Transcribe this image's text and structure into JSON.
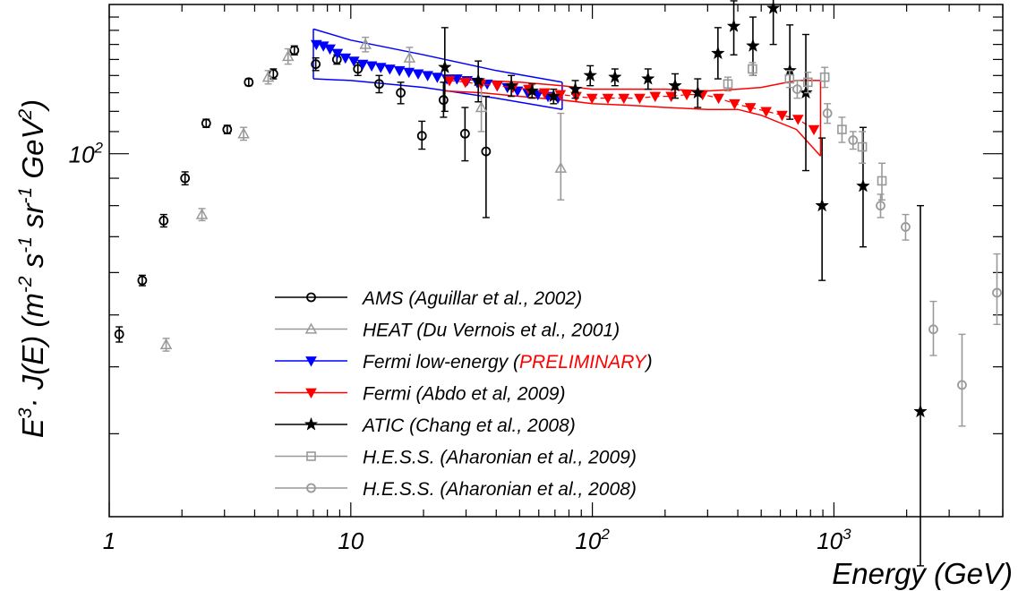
{
  "chart_data": {
    "type": "scatter",
    "xscale": "log",
    "yscale": "log",
    "xlim": [
      1,
      5000
    ],
    "ylim": [
      21,
      190
    ],
    "x_tick_labels": [
      {
        "value": 1,
        "base": "1",
        "exp": ""
      },
      {
        "value": 10,
        "base": "10",
        "exp": ""
      },
      {
        "value": 100,
        "base": "10",
        "exp": "2"
      },
      {
        "value": 1000,
        "base": "10",
        "exp": "3"
      }
    ],
    "y_tick_labels": [
      {
        "value": 100,
        "base": "10",
        "exp": "2"
      }
    ],
    "xlabel": "Energy (GeV)",
    "ylabel": "E^3 · J(E) (m^-2 s^-1 sr^-1 GeV^2)",
    "legend_position": "bottom-center",
    "series": [
      {
        "name": "AMS (Aguillar et al., 2002)",
        "color": "#000000",
        "marker": "circle",
        "points": [
          {
            "x": 1.1,
            "y": 46,
            "lo": 44.5,
            "hi": 47.5
          },
          {
            "x": 1.37,
            "y": 58,
            "lo": 56.7,
            "hi": 59.3
          },
          {
            "x": 1.68,
            "y": 75,
            "lo": 73,
            "hi": 77
          },
          {
            "x": 2.06,
            "y": 90,
            "lo": 87.5,
            "hi": 92.5
          },
          {
            "x": 2.52,
            "y": 114,
            "lo": 112,
            "hi": 116
          },
          {
            "x": 3.08,
            "y": 111,
            "lo": 109,
            "hi": 113
          },
          {
            "x": 3.78,
            "y": 136,
            "lo": 134,
            "hi": 138
          },
          {
            "x": 4.78,
            "y": 141,
            "lo": 138,
            "hi": 144
          },
          {
            "x": 5.84,
            "y": 156,
            "lo": 153,
            "hi": 159
          },
          {
            "x": 7.16,
            "y": 147,
            "lo": 143,
            "hi": 151
          },
          {
            "x": 8.76,
            "y": 150,
            "lo": 147,
            "hi": 153
          },
          {
            "x": 10.7,
            "y": 144,
            "lo": 140,
            "hi": 148
          },
          {
            "x": 13.1,
            "y": 135,
            "lo": 130,
            "hi": 140
          },
          {
            "x": 16.1,
            "y": 130,
            "lo": 124,
            "hi": 136
          },
          {
            "x": 19.7,
            "y": 108,
            "lo": 102,
            "hi": 115
          },
          {
            "x": 24.2,
            "y": 126,
            "lo": 117,
            "hi": 136
          },
          {
            "x": 29.7,
            "y": 109,
            "lo": 97,
            "hi": 122
          },
          {
            "x": 36.3,
            "y": 101,
            "lo": 76,
            "hi": 128
          }
        ]
      },
      {
        "name": "HEAT (Du Vernois et al., 2001)",
        "color": "#999999",
        "marker": "triangle-up",
        "points": [
          {
            "x": 1.72,
            "y": 44,
            "lo": 42.8,
            "hi": 45.2
          },
          {
            "x": 2.42,
            "y": 77,
            "lo": 75,
            "hi": 79
          },
          {
            "x": 3.6,
            "y": 109,
            "lo": 106,
            "hi": 112
          },
          {
            "x": 4.55,
            "y": 139,
            "lo": 135,
            "hi": 143
          },
          {
            "x": 5.5,
            "y": 152,
            "lo": 147,
            "hi": 157
          },
          {
            "x": 11.5,
            "y": 160,
            "lo": 155,
            "hi": 165
          },
          {
            "x": 17.5,
            "y": 151,
            "lo": 144,
            "hi": 158
          },
          {
            "x": 34.7,
            "y": 122,
            "lo": 110,
            "hi": 134
          },
          {
            "x": 74,
            "y": 94,
            "lo": 82,
            "hi": 119
          }
        ]
      },
      {
        "name": "Fermi low-energy (PRELIMINARY)",
        "color": "#0000ff",
        "marker": "triangle-down",
        "band_lower": [
          [
            7.0,
            138
          ],
          [
            10.0,
            137
          ],
          [
            20.0,
            133
          ],
          [
            40.0,
            127
          ],
          [
            75.0,
            121
          ]
        ],
        "band_upper": [
          [
            7.0,
            171
          ],
          [
            10.0,
            163
          ],
          [
            20.0,
            153
          ],
          [
            40.0,
            143
          ],
          [
            75.0,
            136
          ]
        ],
        "points": [
          {
            "x": 7.2,
            "y": 160
          },
          {
            "x": 7.7,
            "y": 159
          },
          {
            "x": 8.2,
            "y": 157
          },
          {
            "x": 8.8,
            "y": 154
          },
          {
            "x": 9.5,
            "y": 151
          },
          {
            "x": 10.3,
            "y": 149
          },
          {
            "x": 11.2,
            "y": 147
          },
          {
            "x": 12.2,
            "y": 146
          },
          {
            "x": 13.3,
            "y": 145
          },
          {
            "x": 14.5,
            "y": 144
          },
          {
            "x": 15.9,
            "y": 143
          },
          {
            "x": 17.4,
            "y": 142
          },
          {
            "x": 19.0,
            "y": 141
          },
          {
            "x": 20.8,
            "y": 140
          },
          {
            "x": 22.8,
            "y": 139
          },
          {
            "x": 25.0,
            "y": 138
          },
          {
            "x": 27.5,
            "y": 138
          },
          {
            "x": 30.3,
            "y": 137
          },
          {
            "x": 33.3,
            "y": 136
          },
          {
            "x": 36.7,
            "y": 135
          },
          {
            "x": 40.4,
            "y": 134
          },
          {
            "x": 44.5,
            "y": 133
          },
          {
            "x": 49.0,
            "y": 131
          },
          {
            "x": 54.0,
            "y": 130
          },
          {
            "x": 59.5,
            "y": 129
          },
          {
            "x": 65.5,
            "y": 128
          },
          {
            "x": 72.0,
            "y": 127
          }
        ]
      },
      {
        "name": "Fermi (Abdo et al, 2009)",
        "color": "#ff0000",
        "marker": "triangle-down",
        "band_lower": [
          [
            24.5,
            131
          ],
          [
            35,
            130
          ],
          [
            50,
            128
          ],
          [
            75,
            126
          ],
          [
            100,
            124
          ],
          [
            150,
            123
          ],
          [
            200,
            122
          ],
          [
            300,
            121
          ],
          [
            400,
            121
          ],
          [
            500,
            118
          ],
          [
            700,
            111
          ],
          [
            880,
            99
          ]
        ],
        "band_upper": [
          [
            24.5,
            138
          ],
          [
            35,
            137
          ],
          [
            50,
            136
          ],
          [
            75,
            134
          ],
          [
            100,
            132
          ],
          [
            150,
            132
          ],
          [
            200,
            132
          ],
          [
            300,
            131
          ],
          [
            400,
            132
          ],
          [
            500,
            133
          ],
          [
            700,
            137
          ],
          [
            880,
            137
          ]
        ],
        "points": [
          {
            "x": 25.6,
            "y": 137
          },
          {
            "x": 29.8,
            "y": 136
          },
          {
            "x": 34.6,
            "y": 135
          },
          {
            "x": 40.3,
            "y": 134
          },
          {
            "x": 46.9,
            "y": 133
          },
          {
            "x": 54.5,
            "y": 132
          },
          {
            "x": 63.4,
            "y": 130
          },
          {
            "x": 73.7,
            "y": 129
          },
          {
            "x": 85.7,
            "y": 128
          },
          {
            "x": 99.7,
            "y": 127
          },
          {
            "x": 116,
            "y": 127
          },
          {
            "x": 135,
            "y": 127
          },
          {
            "x": 157,
            "y": 127
          },
          {
            "x": 182,
            "y": 128
          },
          {
            "x": 212,
            "y": 128
          },
          {
            "x": 246,
            "y": 129
          },
          {
            "x": 286,
            "y": 129
          },
          {
            "x": 333,
            "y": 127
          },
          {
            "x": 388,
            "y": 124
          },
          {
            "x": 451,
            "y": 122
          },
          {
            "x": 524,
            "y": 120
          },
          {
            "x": 610,
            "y": 118
          },
          {
            "x": 710,
            "y": 116
          },
          {
            "x": 826,
            "y": 111
          }
        ]
      },
      {
        "name": "ATIC (Chang et al., 2008)",
        "color": "#000000",
        "marker": "star",
        "points": [
          {
            "x": 24.5,
            "y": 145,
            "lo": 120,
            "hi": 172
          },
          {
            "x": 33.7,
            "y": 137,
            "lo": 125,
            "hi": 149
          },
          {
            "x": 46.2,
            "y": 134,
            "lo": 128,
            "hi": 140
          },
          {
            "x": 56.3,
            "y": 131,
            "lo": 127,
            "hi": 135
          },
          {
            "x": 69.1,
            "y": 128,
            "lo": 124,
            "hi": 132
          },
          {
            "x": 85,
            "y": 132,
            "lo": 127,
            "hi": 137
          },
          {
            "x": 98,
            "y": 140,
            "lo": 134,
            "hi": 146
          },
          {
            "x": 124,
            "y": 139,
            "lo": 134,
            "hi": 144
          },
          {
            "x": 170,
            "y": 138,
            "lo": 132,
            "hi": 144
          },
          {
            "x": 220,
            "y": 134,
            "lo": 127,
            "hi": 141
          },
          {
            "x": 273,
            "y": 130,
            "lo": 122,
            "hi": 138
          },
          {
            "x": 331,
            "y": 154,
            "lo": 138,
            "hi": 172
          },
          {
            "x": 385,
            "y": 173,
            "lo": 153,
            "hi": 193
          },
          {
            "x": 462,
            "y": 159,
            "lo": 140,
            "hi": 180
          },
          {
            "x": 561,
            "y": 187,
            "lo": 160,
            "hi": 216
          },
          {
            "x": 657,
            "y": 143,
            "lo": 116,
            "hi": 174
          },
          {
            "x": 765,
            "y": 130,
            "lo": 93,
            "hi": 167
          },
          {
            "x": 893,
            "y": 80,
            "lo": 58,
            "hi": 107
          },
          {
            "x": 1320,
            "y": 87,
            "lo": 67,
            "hi": 112
          },
          {
            "x": 2280,
            "y": 33,
            "lo": 17,
            "hi": 80
          }
        ]
      },
      {
        "name": "H.E.S.S. (Aharonian et al., 2009)",
        "color": "#999999",
        "marker": "square",
        "points": [
          {
            "x": 364,
            "y": 135,
            "lo": 131,
            "hi": 139
          },
          {
            "x": 460,
            "y": 144,
            "lo": 140,
            "hi": 148
          },
          {
            "x": 655,
            "y": 138,
            "lo": 133,
            "hi": 143
          },
          {
            "x": 780,
            "y": 136,
            "lo": 130,
            "hi": 142
          },
          {
            "x": 916,
            "y": 139,
            "lo": 133,
            "hi": 145
          },
          {
            "x": 1080,
            "y": 111,
            "lo": 105,
            "hi": 117
          },
          {
            "x": 1310,
            "y": 103,
            "lo": 96,
            "hi": 110
          },
          {
            "x": 1580,
            "y": 89,
            "lo": 82,
            "hi": 96
          }
        ]
      },
      {
        "name": "H.E.S.S. (Aharonian et al., 2008)",
        "color": "#999999",
        "marker": "circle",
        "points": [
          {
            "x": 705,
            "y": 132,
            "lo": 127,
            "hi": 137
          },
          {
            "x": 940,
            "y": 119,
            "lo": 114,
            "hi": 124
          },
          {
            "x": 1200,
            "y": 106,
            "lo": 102,
            "hi": 110
          },
          {
            "x": 1560,
            "y": 80,
            "lo": 76,
            "hi": 84
          },
          {
            "x": 1980,
            "y": 73,
            "lo": 69,
            "hi": 77
          },
          {
            "x": 2580,
            "y": 47,
            "lo": 42,
            "hi": 53
          },
          {
            "x": 3390,
            "y": 37,
            "lo": 31,
            "hi": 46
          },
          {
            "x": 4730,
            "y": 55,
            "lo": 48,
            "hi": 65
          }
        ]
      }
    ],
    "legend_entries": [
      {
        "text": "AMS (Aguillar et al., 2002)",
        "series": 0
      },
      {
        "text": "HEAT (Du Vernois et al., 2001)",
        "series": 1
      },
      {
        "text_before": "Fermi low-energy (",
        "text_highlight": "PRELIMINARY",
        "text_after": ")",
        "highlight_color": "#ff0000",
        "series": 2
      },
      {
        "text": "Fermi (Abdo et al, 2009)",
        "series": 3
      },
      {
        "text": "ATIC (Chang et al., 2008)",
        "series": 4
      },
      {
        "text": "H.E.S.S. (Aharonian et al., 2009)",
        "series": 5
      },
      {
        "text": "H.E.S.S. (Aharonian et al., 2008)",
        "series": 6
      }
    ]
  }
}
